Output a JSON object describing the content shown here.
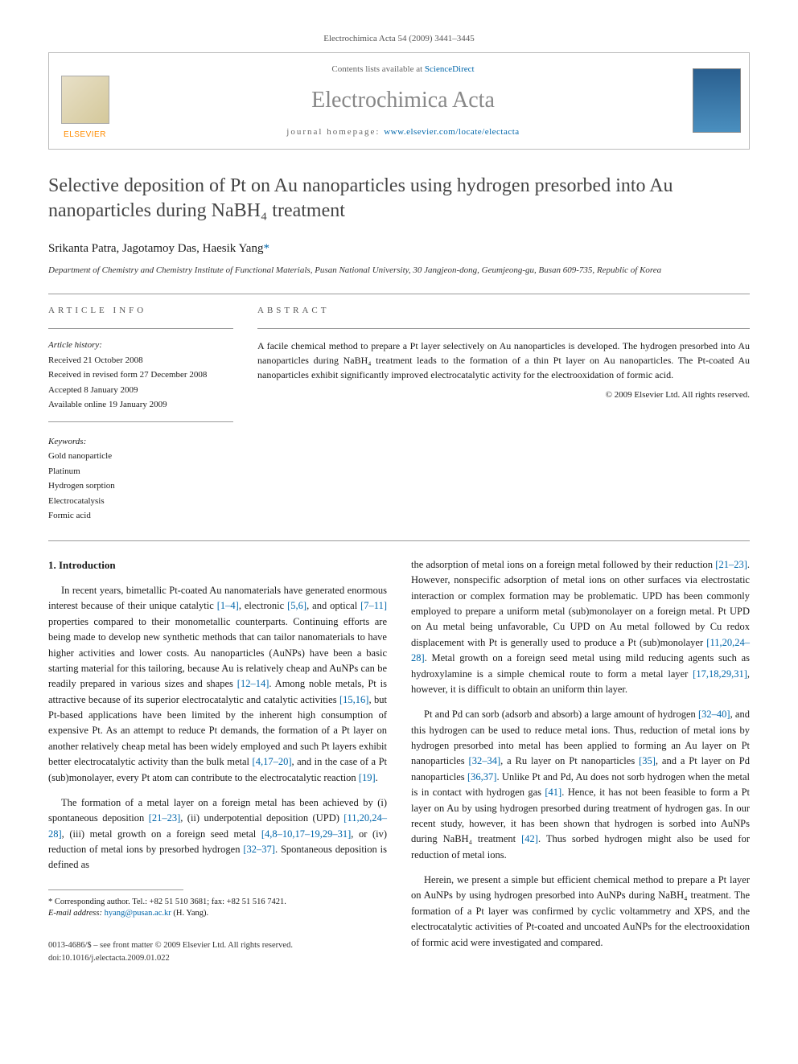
{
  "header": {
    "citation": "Electrochimica Acta 54 (2009) 3441–3445"
  },
  "masthead": {
    "contents_prefix": "Contents lists available at ",
    "contents_link": "ScienceDirect",
    "journal_name": "Electrochimica Acta",
    "homepage_label": "journal homepage: ",
    "homepage_url": "www.elsevier.com/locate/electacta",
    "publisher_label": "ELSEVIER"
  },
  "article": {
    "title": "Selective deposition of Pt on Au nanoparticles using hydrogen presorbed into Au nanoparticles during NaBH₄ treatment",
    "authors": "Srikanta Patra, Jagotamoy Das, Haesik Yang",
    "corr_marker": "*",
    "affiliation": "Department of Chemistry and Chemistry Institute of Functional Materials, Pusan National University, 30 Jangjeon-dong, Geumjeong-gu, Busan 609-735, Republic of Korea"
  },
  "info": {
    "article_info_label": "ARTICLE INFO",
    "abstract_label": "ABSTRACT",
    "history_label": "Article history:",
    "history": [
      "Received 21 October 2008",
      "Received in revised form 27 December 2008",
      "Accepted 8 January 2009",
      "Available online 19 January 2009"
    ],
    "keywords_label": "Keywords:",
    "keywords": [
      "Gold nanoparticle",
      "Platinum",
      "Hydrogen sorption",
      "Electrocatalysis",
      "Formic acid"
    ],
    "abstract": "A facile chemical method to prepare a Pt layer selectively on Au nanoparticles is developed. The hydrogen presorbed into Au nanoparticles during NaBH₄ treatment leads to the formation of a thin Pt layer on Au nanoparticles. The Pt-coated Au nanoparticles exhibit significantly improved electrocatalytic activity for the electrooxidation of formic acid.",
    "copyright": "© 2009 Elsevier Ltd. All rights reserved."
  },
  "body": {
    "section_1_heading": "1. Introduction",
    "left_paragraphs": [
      "In recent years, bimetallic Pt-coated Au nanomaterials have generated enormous interest because of their unique catalytic [1–4], electronic [5,6], and optical [7–11] properties compared to their monometallic counterparts. Continuing efforts are being made to develop new synthetic methods that can tailor nanomaterials to have higher activities and lower costs. Au nanoparticles (AuNPs) have been a basic starting material for this tailoring, because Au is relatively cheap and AuNPs can be readily prepared in various sizes and shapes [12–14]. Among noble metals, Pt is attractive because of its superior electrocatalytic and catalytic activities [15,16], but Pt-based applications have been limited by the inherent high consumption of expensive Pt. As an attempt to reduce Pt demands, the formation of a Pt layer on another relatively cheap metal has been widely employed and such Pt layers exhibit better electrocatalytic activity than the bulk metal [4,17–20], and in the case of a Pt (sub)monolayer, every Pt atom can contribute to the electrocatalytic reaction [19].",
      "The formation of a metal layer on a foreign metal has been achieved by (i) spontaneous deposition [21–23], (ii) underpotential deposition (UPD) [11,20,24–28], (iii) metal growth on a foreign seed metal [4,8–10,17–19,29–31], or (iv) reduction of metal ions by presorbed hydrogen [32–37]. Spontaneous deposition is defined as"
    ],
    "right_paragraphs": [
      "the adsorption of metal ions on a foreign metal followed by their reduction [21–23]. However, nonspecific adsorption of metal ions on other surfaces via electrostatic interaction or complex formation may be problematic. UPD has been commonly employed to prepare a uniform metal (sub)monolayer on a foreign metal. Pt UPD on Au metal being unfavorable, Cu UPD on Au metal followed by Cu redox displacement with Pt is generally used to produce a Pt (sub)monolayer [11,20,24–28]. Metal growth on a foreign seed metal using mild reducing agents such as hydroxylamine is a simple chemical route to form a metal layer [17,18,29,31], however, it is difficult to obtain an uniform thin layer.",
      "Pt and Pd can sorb (adsorb and absorb) a large amount of hydrogen [32–40], and this hydrogen can be used to reduce metal ions. Thus, reduction of metal ions by hydrogen presorbed into metal has been applied to forming an Au layer on Pt nanoparticles [32–34], a Ru layer on Pt nanoparticles [35], and a Pt layer on Pd nanoparticles [36,37]. Unlike Pt and Pd, Au does not sorb hydrogen when the metal is in contact with hydrogen gas [41]. Hence, it has not been feasible to form a Pt layer on Au by using hydrogen presorbed during treatment of hydrogen gas. In our recent study, however, it has been shown that hydrogen is sorbed into AuNPs during NaBH₄ treatment [42]. Thus sorbed hydrogen might also be used for reduction of metal ions.",
      "Herein, we present a simple but efficient chemical method to prepare a Pt layer on AuNPs by using hydrogen presorbed into AuNPs during NaBH₄ treatment. The formation of a Pt layer was confirmed by cyclic voltammetry and XPS, and the electrocatalytic activities of Pt-coated and uncoated AuNPs for the electrooxidation of formic acid were investigated and compared."
    ]
  },
  "footnote": {
    "corr_label": "* Corresponding author. Tel.: +82 51 510 3681; fax: +82 51 516 7421.",
    "email_label": "E-mail address: ",
    "email": "hyang@pusan.ac.kr",
    "email_suffix": " (H. Yang)."
  },
  "footer": {
    "issn_line": "0013-4686/$ – see front matter © 2009 Elsevier Ltd. All rights reserved.",
    "doi_line": "doi:10.1016/j.electacta.2009.01.022"
  }
}
